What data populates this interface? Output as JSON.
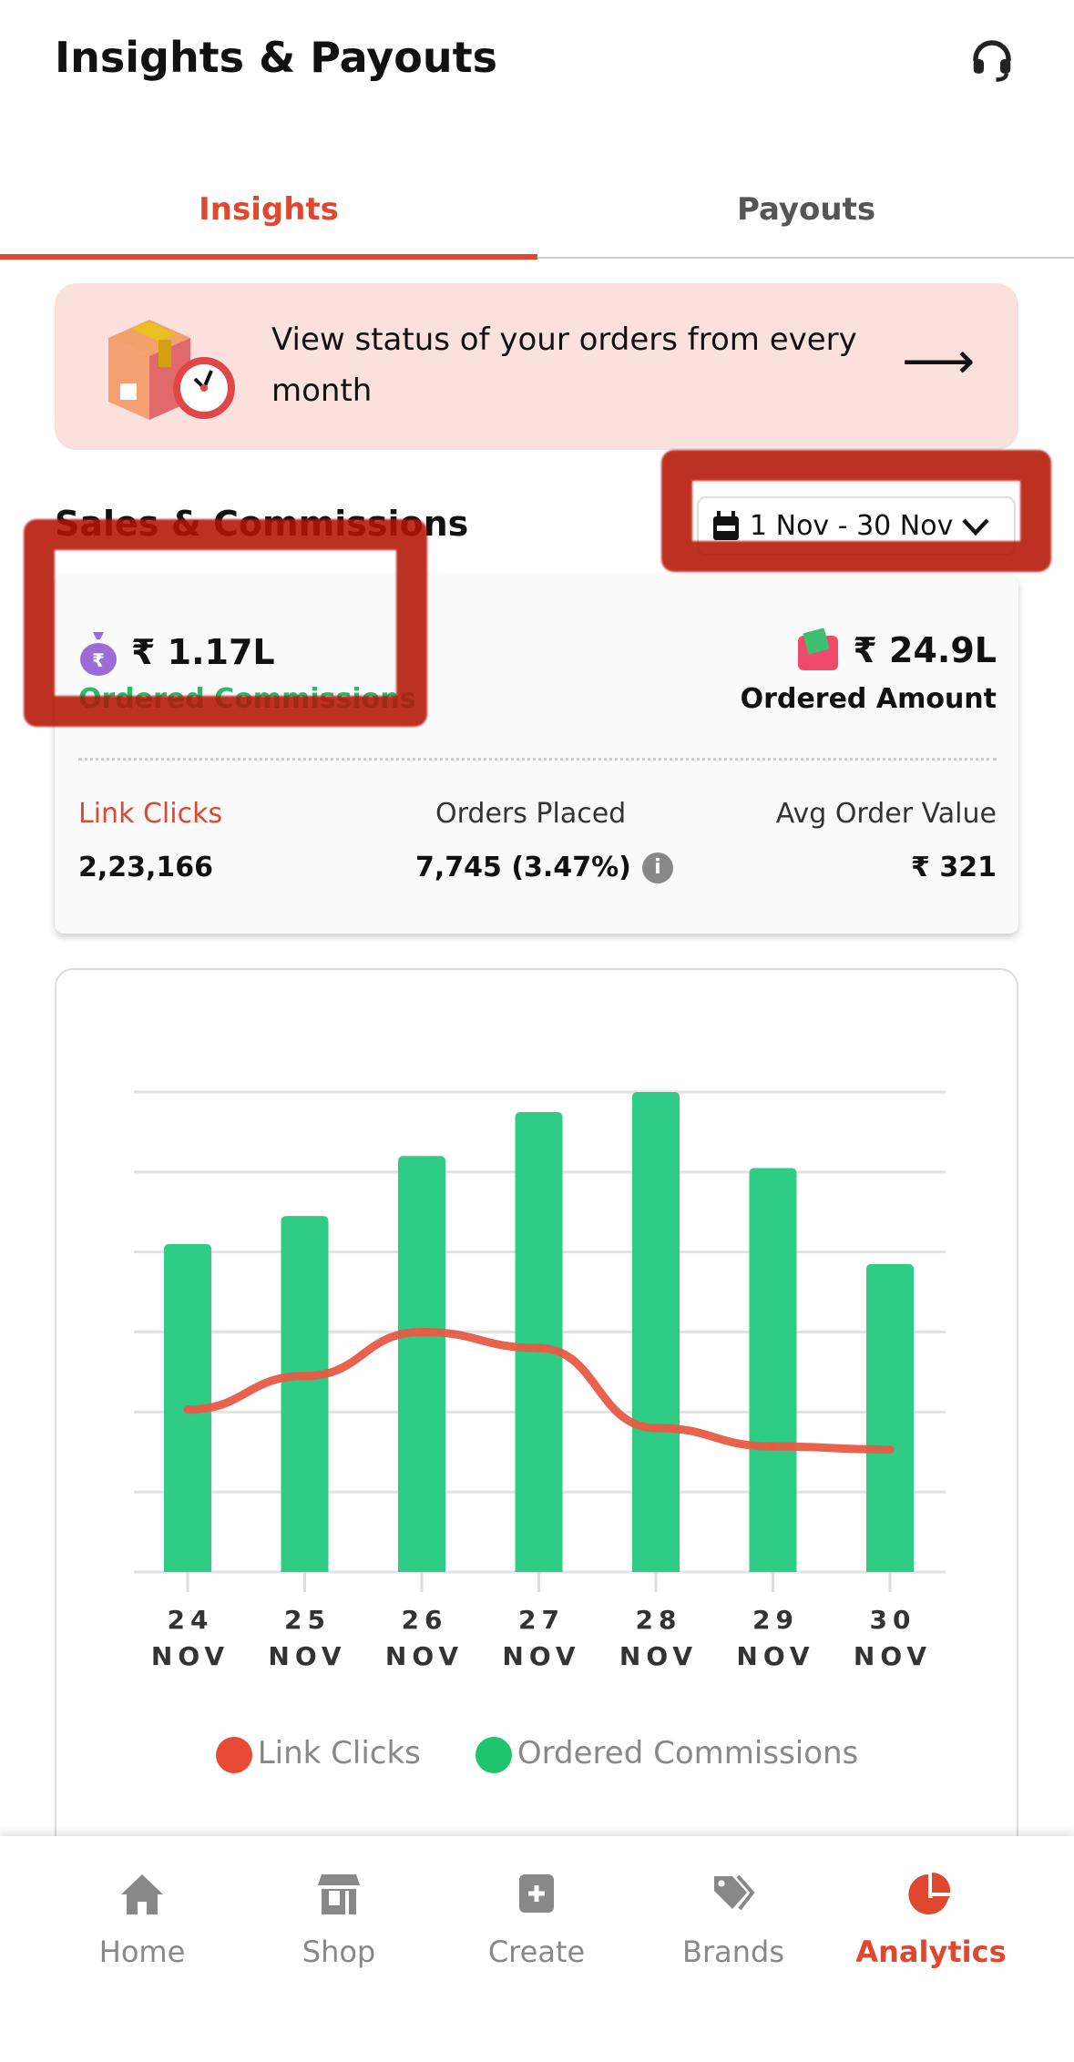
{
  "header": {
    "title": "Insights & Payouts",
    "support_icon": "headset-icon"
  },
  "tabs": [
    {
      "label": "Insights",
      "active": true
    },
    {
      "label": "Payouts",
      "active": false
    }
  ],
  "banner": {
    "text": "View status of your orders from every month",
    "icon": "package-clock-icon",
    "arrow": "⟶"
  },
  "sales": {
    "title": "Sales & Commissions",
    "date_range": "1 Nov - 30 Nov"
  },
  "summary": {
    "commissions": {
      "value": "₹ 1.17L",
      "label": "Ordered Commissions"
    },
    "amount": {
      "value": "₹ 24.9L",
      "label": "Ordered Amount"
    },
    "stats": [
      {
        "label": "Link Clicks",
        "value": "2,23,166"
      },
      {
        "label": "Orders Placed",
        "value": "7,745 (3.47%)"
      },
      {
        "label": "Avg Order Value",
        "value": "₹ 321"
      }
    ]
  },
  "colors": {
    "accent": "#e0472f",
    "green": "#2ecc85",
    "banner_bg": "#fbe1de"
  },
  "chart_data": {
    "type": "bar+line",
    "categories": [
      [
        "24",
        "NOV"
      ],
      [
        "25",
        "NOV"
      ],
      [
        "26",
        "NOV"
      ],
      [
        "27",
        "NOV"
      ],
      [
        "28",
        "NOV"
      ],
      [
        "29",
        "NOV"
      ],
      [
        "30",
        "NOV"
      ]
    ],
    "series": [
      {
        "name": "Ordered Commissions",
        "type": "bar",
        "color": "#2ecc85",
        "values": [
          4.1,
          4.45,
          5.2,
          5.75,
          6.0,
          5.05,
          3.85
        ]
      },
      {
        "name": "Link Clicks",
        "type": "line",
        "color": "#e85a45",
        "values": [
          2.03,
          2.45,
          3.0,
          2.8,
          1.8,
          1.57,
          1.53
        ]
      }
    ],
    "ylim": [
      0,
      6
    ],
    "grid": true,
    "gridlines": 7,
    "legend": "bottom",
    "y_tick_labels": false
  },
  "nav": [
    {
      "label": "Home",
      "icon": "home-icon",
      "active": false
    },
    {
      "label": "Shop",
      "icon": "shop-icon",
      "active": false
    },
    {
      "label": "Create",
      "icon": "plus-square-icon",
      "active": false
    },
    {
      "label": "Brands",
      "icon": "tag-icon",
      "active": false
    },
    {
      "label": "Analytics",
      "icon": "pie-chart-icon",
      "active": true
    }
  ]
}
